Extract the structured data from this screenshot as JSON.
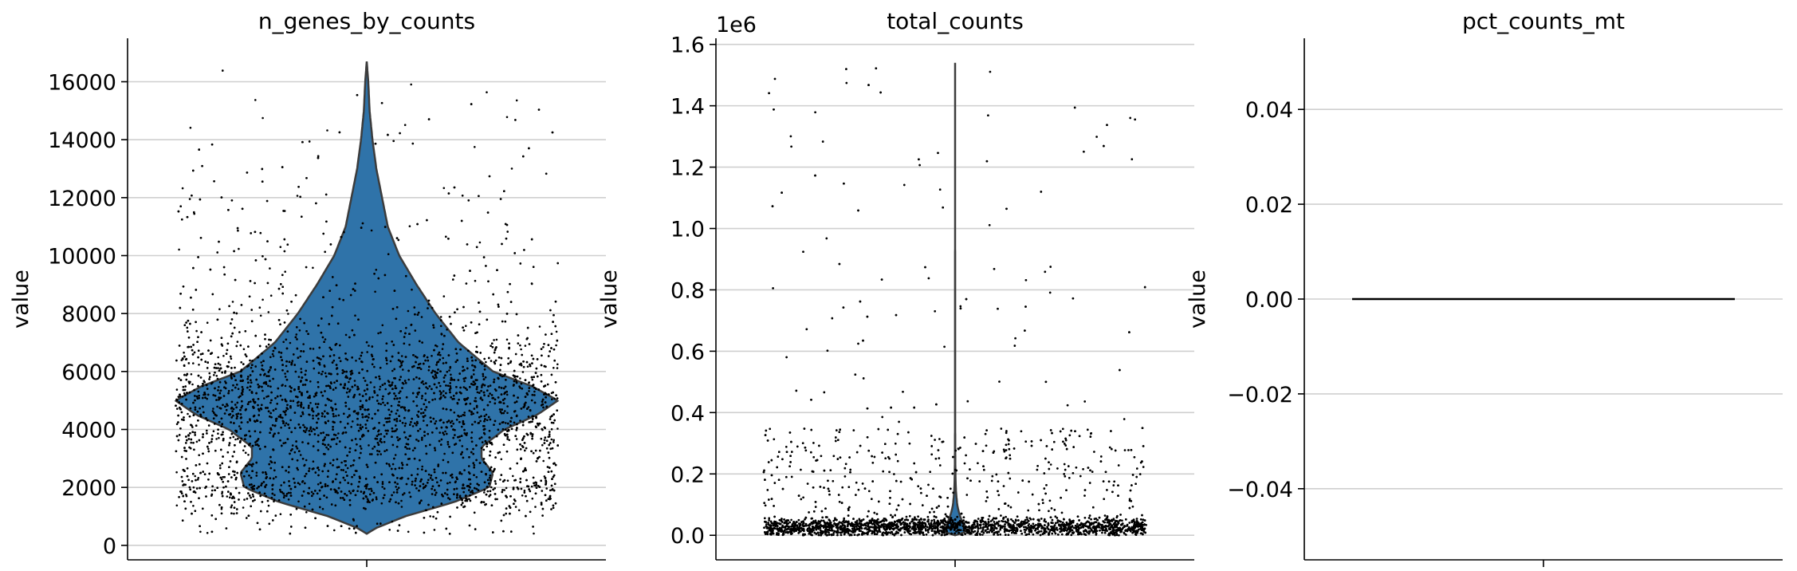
{
  "chart_data": [
    {
      "type": "violin",
      "title": "n_genes_by_counts",
      "ylabel": "value",
      "yticks": [
        "0",
        "2000",
        "4000",
        "6000",
        "8000",
        "10000",
        "12000",
        "14000",
        "16000"
      ],
      "ylim": [
        -500,
        17500
      ],
      "grid": true,
      "violin_color": "#2f73a9",
      "point_color": "#000000",
      "density": [
        [
          400,
          0.0
        ],
        [
          600,
          0.05
        ],
        [
          1000,
          0.2
        ],
        [
          1500,
          0.46
        ],
        [
          2000,
          0.64
        ],
        [
          2500,
          0.66
        ],
        [
          3000,
          0.6
        ],
        [
          3400,
          0.6
        ],
        [
          4000,
          0.72
        ],
        [
          4500,
          0.89
        ],
        [
          5000,
          1.0
        ],
        [
          5500,
          0.86
        ],
        [
          6000,
          0.66
        ],
        [
          7000,
          0.48
        ],
        [
          8000,
          0.36
        ],
        [
          9000,
          0.26
        ],
        [
          10000,
          0.17
        ],
        [
          11000,
          0.11
        ],
        [
          12000,
          0.08
        ],
        [
          13000,
          0.05
        ],
        [
          14000,
          0.03
        ],
        [
          15000,
          0.015
        ],
        [
          16000,
          0.008
        ],
        [
          16700,
          0.0
        ]
      ],
      "points": {
        "count": 6000,
        "min": 400,
        "max": 16700,
        "typical": 5000
      }
    },
    {
      "type": "violin",
      "title": "total_counts",
      "ylabel": "value",
      "scale_label": "1e6",
      "yticks": [
        "0.0",
        "0.2",
        "0.4",
        "0.6",
        "0.8",
        "1.0",
        "1.2",
        "1.4",
        "1.6"
      ],
      "ylim": [
        -0.08,
        1.62
      ],
      "grid": true,
      "violin_color": "#2f73a9",
      "point_color": "#000000",
      "density": [
        [
          0.0,
          1.0
        ],
        [
          0.02,
          1.0
        ],
        [
          0.04,
          0.8
        ],
        [
          0.06,
          0.55
        ],
        [
          0.08,
          0.35
        ],
        [
          0.1,
          0.22
        ],
        [
          0.14,
          0.1
        ],
        [
          0.18,
          0.05
        ],
        [
          0.22,
          0.03
        ],
        [
          0.3,
          0.015
        ],
        [
          0.4,
          0.008
        ],
        [
          0.6,
          0.005
        ],
        [
          1.0,
          0.004
        ],
        [
          1.54,
          0.003
        ]
      ],
      "points": {
        "count": 6000,
        "min": 0.0,
        "max": 1.54,
        "typical": 0.03
      }
    },
    {
      "type": "violin",
      "title": "pct_counts_mt",
      "ylabel": "value",
      "yticks": [
        "−0.04",
        "−0.02",
        "0.00",
        "0.02",
        "0.04"
      ],
      "ylim": [
        -0.055,
        0.055
      ],
      "grid": true,
      "constant_value": 0.0
    }
  ]
}
